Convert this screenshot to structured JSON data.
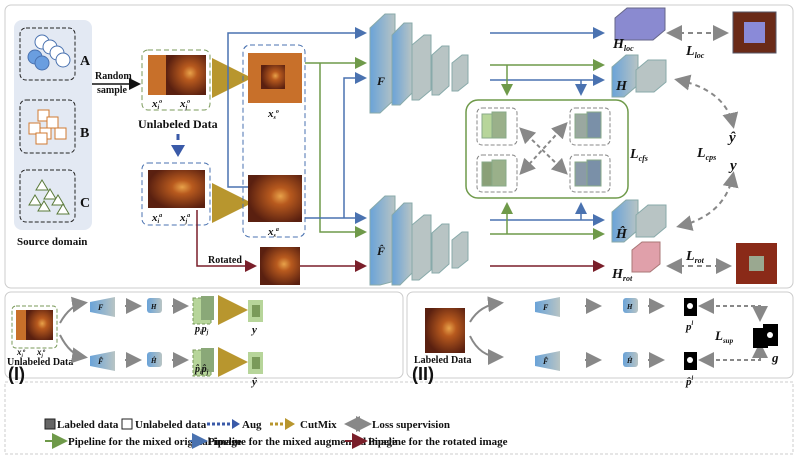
{
  "source_domain": {
    "label": "Source domain",
    "domains": [
      "A",
      "B",
      "C"
    ]
  },
  "random_sample": [
    "Random",
    "sample"
  ],
  "unlabeled_data": "Unlabeled Data",
  "labeled_data": "Labeled Data",
  "rotated": "Rotated",
  "vars": {
    "x": "x",
    "o": "o",
    "a": "a",
    "i": "i",
    "j": "j",
    "s": "s"
  },
  "encoders": {
    "F": "F",
    "F_hat": "F̂"
  },
  "heads": {
    "H": "H",
    "H_hat": "Ĥ",
    "H_loc": "H",
    "loc": "loc",
    "H_rot": "H",
    "rot": "rot"
  },
  "losses": {
    "L": "L",
    "loc": "loc",
    "rot": "rot",
    "cfs": "cfs",
    "cps": "cps",
    "sup": "sup"
  },
  "outputs": {
    "y": "y",
    "y_hat": "ŷ",
    "p": "p",
    "p_hat": "p̂",
    "l": "l",
    "g": "g"
  },
  "panels": {
    "left": "(I)",
    "right": "(II)"
  },
  "legend": {
    "labeled": "Labeled data",
    "unlabeled": "Unlabeled data",
    "aug": "Aug",
    "cutmix": "CutMix",
    "loss": "Loss supervision",
    "green": "Pipeline for the mixed original image",
    "blue": "Pipeline for the mixed augmented image",
    "red": "Pipeline for the rotated image"
  },
  "colors": {
    "green": "#6f9a4a",
    "blue": "#4a72b0",
    "red": "#7a1f2a",
    "gold": "#b8962e",
    "gray": "#8a8a8a"
  }
}
